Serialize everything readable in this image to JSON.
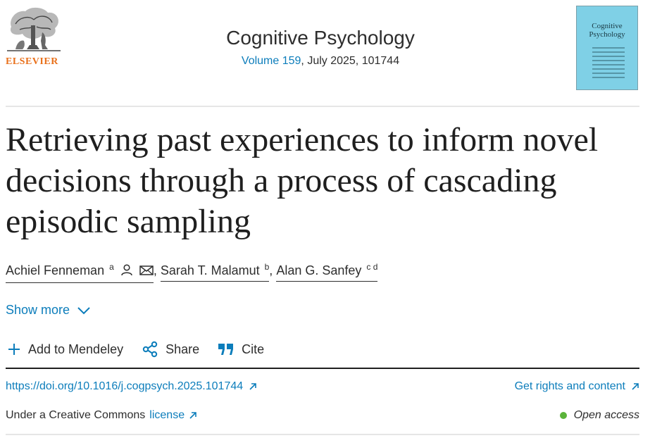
{
  "header": {
    "publisher_logo_text": "ELSEVIER",
    "journal_title": "Cognitive Psychology",
    "volume_link": "Volume 159",
    "issue_rest": ", July 2025, 101744",
    "cover_title_line1": "Cognitive",
    "cover_title_line2": "Psychology"
  },
  "article": {
    "title": "Retrieving past experiences to inform novel decisions through a process of cascading episodic sampling"
  },
  "authors": [
    {
      "name": "Achiel Fenneman",
      "affil": "a"
    },
    {
      "name": "Sarah T. Malamut",
      "affil": "b"
    },
    {
      "name": "Alan G. Sanfey",
      "affil": "c d"
    }
  ],
  "author_separator": ",",
  "show_more": "Show more",
  "actions": {
    "mendeley": "Add to Mendeley",
    "share": "Share",
    "cite": "Cite"
  },
  "links": {
    "doi": "https://doi.org/10.1016/j.cogpsych.2025.101744",
    "rights": "Get rights and content",
    "license_prefix": "Under a Creative Commons",
    "license_link": "license",
    "open_access": "Open access"
  },
  "colors": {
    "link": "#0c7dbb",
    "brand_orange": "#e9711c",
    "open_access_dot": "#5ab33a",
    "cover": "#7fd0e6"
  },
  "icons": [
    "elsevier-tree-logo",
    "person-icon",
    "mail-icon",
    "chevron-down-icon",
    "plus-icon",
    "share-icon",
    "quote-icon",
    "external-arrow-icon"
  ]
}
